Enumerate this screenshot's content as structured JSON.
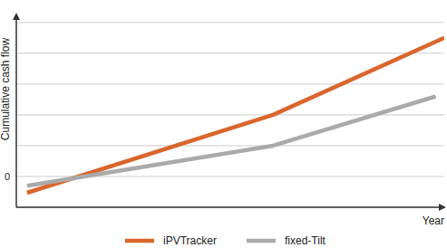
{
  "chart_data": {
    "type": "line",
    "x_label": "Year",
    "y_label": "Cumulative cash flow",
    "xlim": [
      0,
      20
    ],
    "ylim": [
      -1,
      5.2
    ],
    "yticks": [
      {
        "value": -1,
        "label": null
      },
      0,
      {
        "value": 1,
        "label": null
      },
      {
        "value": 2,
        "label": null
      },
      {
        "value": 3,
        "label": null
      },
      {
        "value": 4,
        "label": null
      },
      {
        "value": 5,
        "label": null
      }
    ],
    "grid": true,
    "legend": "bottom",
    "tick_labels": "y",
    "series": [
      {
        "name": "iPVTracker",
        "color": "#d9662d",
        "x": [
          0.5,
          12,
          20
        ],
        "values": [
          -0.53,
          2,
          4.5
        ]
      },
      {
        "name": "fixed-Tilt",
        "color": "#aaaaaa",
        "x": [
          0.5,
          12,
          19.6
        ],
        "values": [
          -0.3,
          1,
          2.6
        ]
      }
    ]
  }
}
